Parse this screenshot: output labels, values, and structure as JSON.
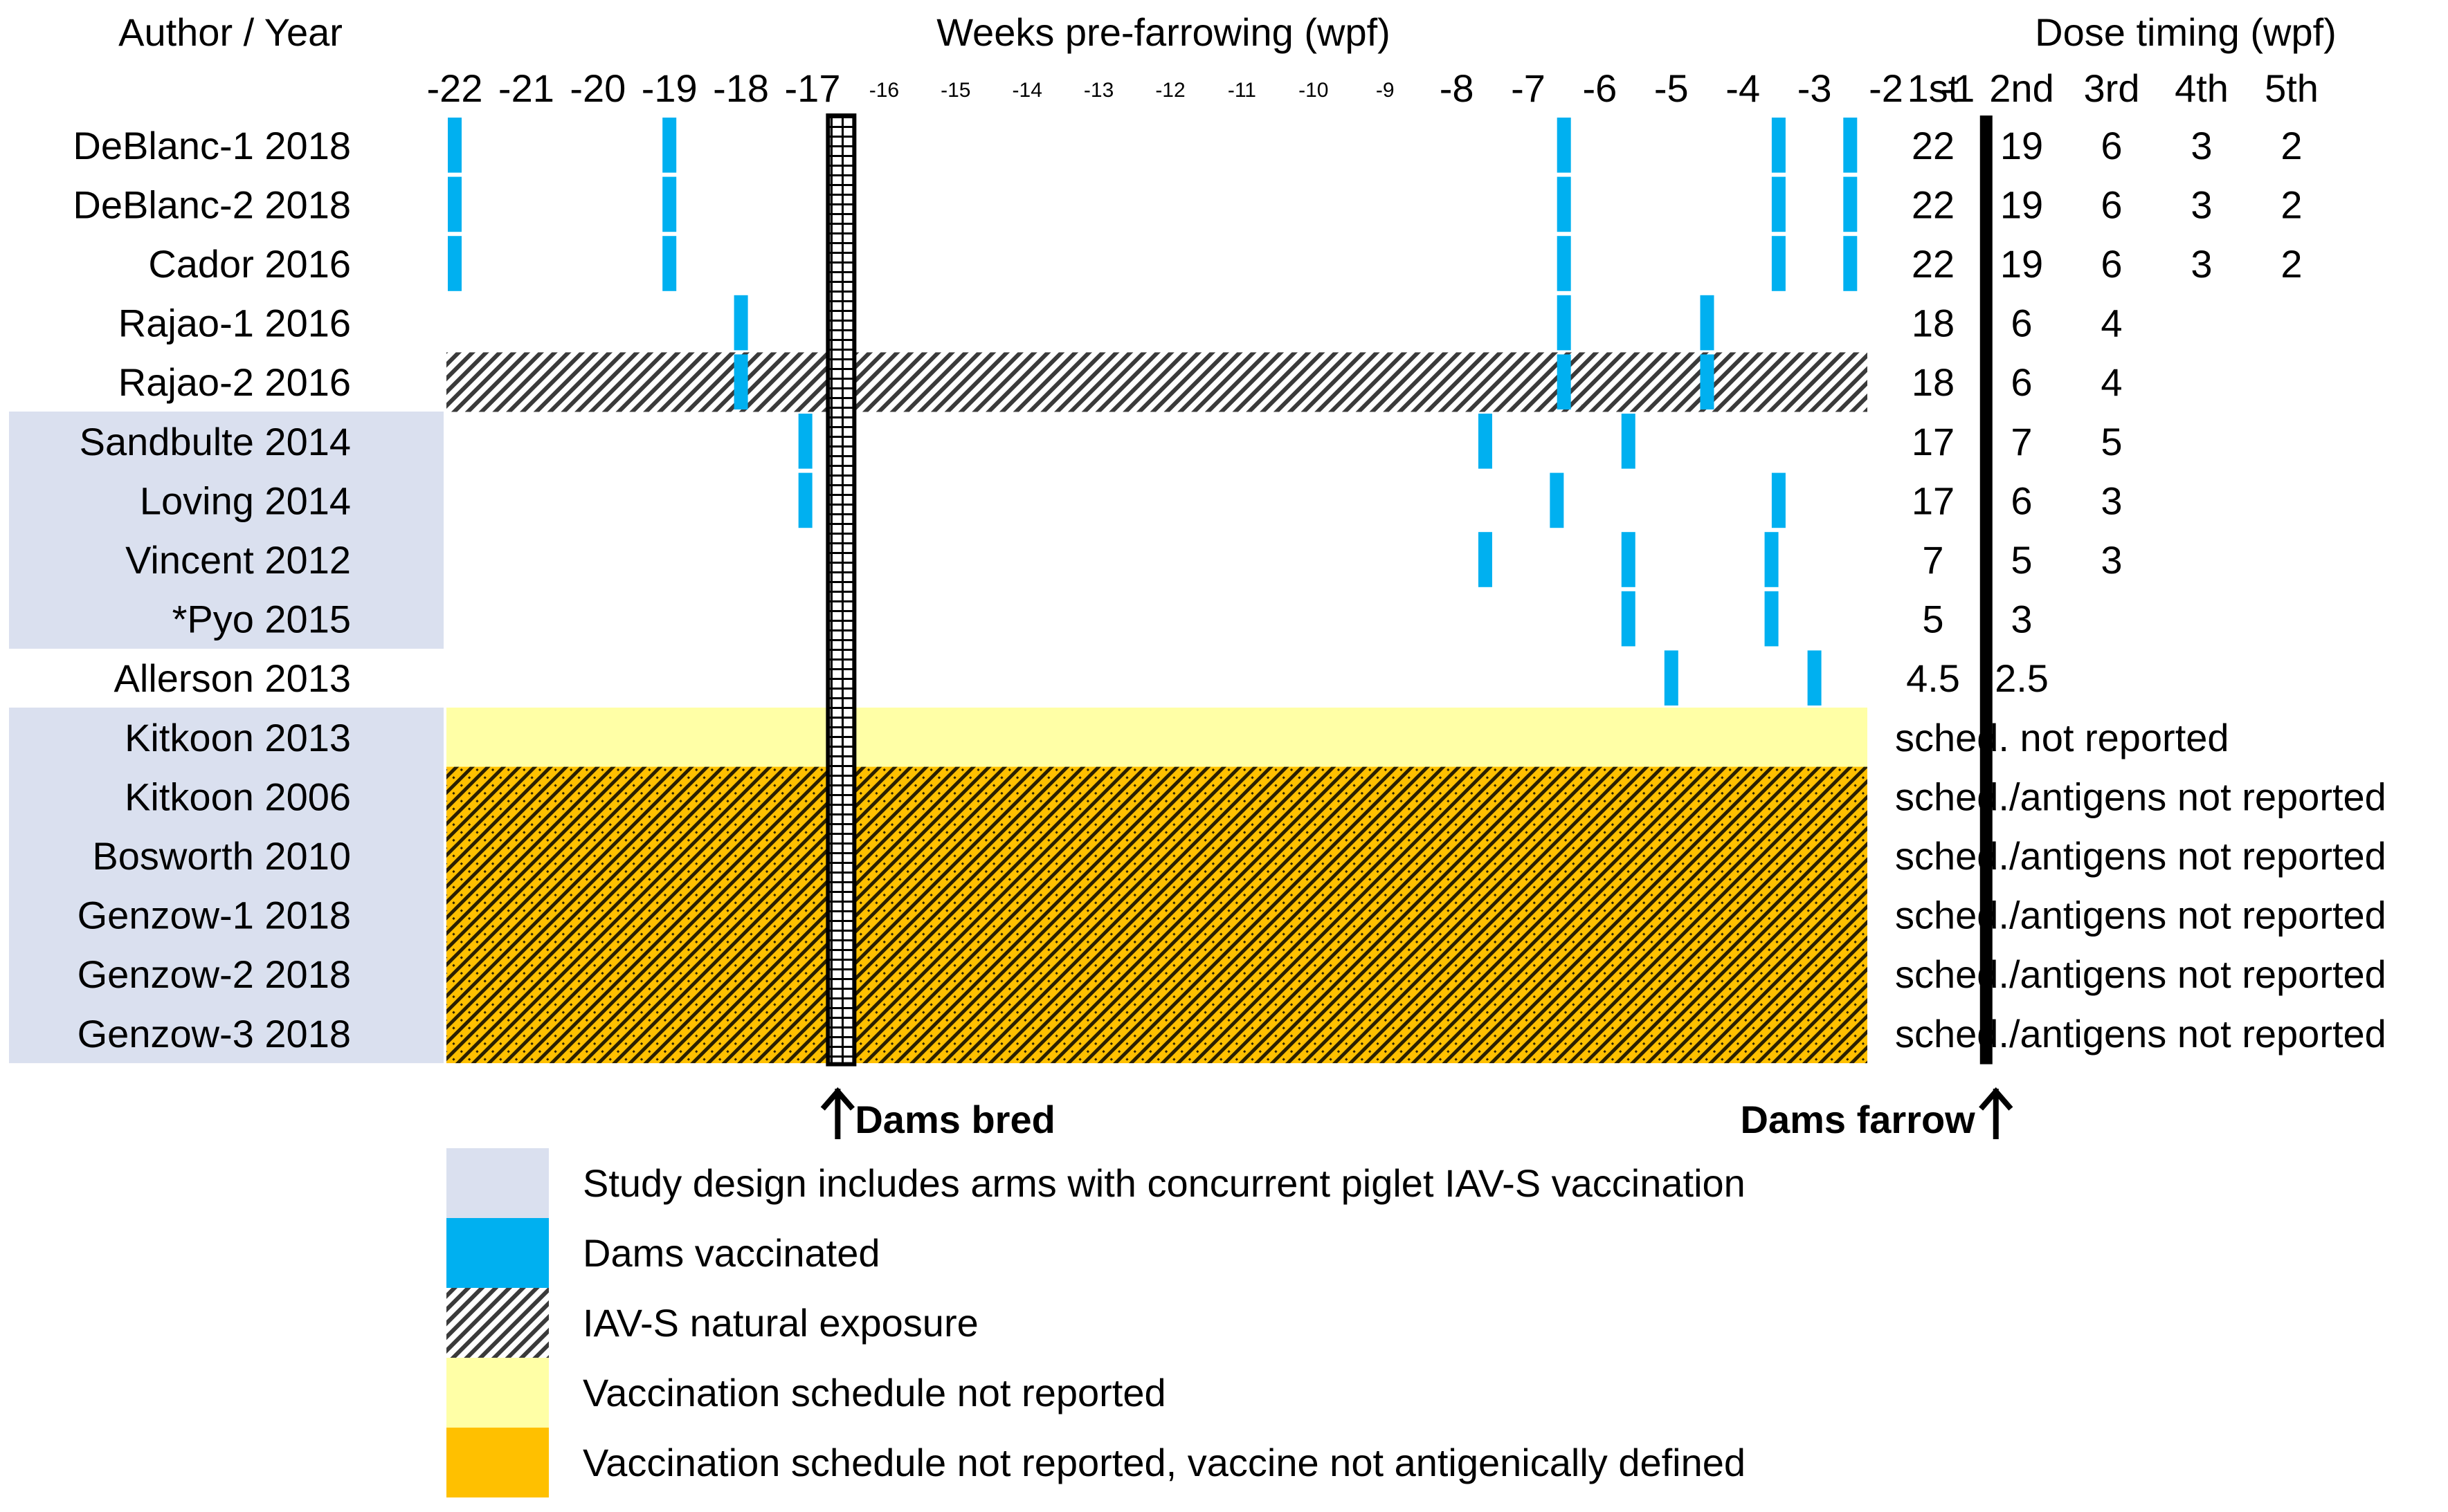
{
  "chart_data": {
    "type": "timeline",
    "title": "Weeks pre-farrowing (wpf)",
    "row_header": "Author / Year",
    "dose_header": "Dose timing (wpf)",
    "dose_columns": [
      "1st",
      "2nd",
      "3rd",
      "4th",
      "5th"
    ],
    "x_ticks": [
      {
        "v": -22,
        "label": "-22",
        "size": "big"
      },
      {
        "v": -21,
        "label": "-21",
        "size": "big"
      },
      {
        "v": -20,
        "label": "-20",
        "size": "big"
      },
      {
        "v": -19,
        "label": "-19",
        "size": "big"
      },
      {
        "v": -18,
        "label": "-18",
        "size": "big"
      },
      {
        "v": -17,
        "label": "-17",
        "size": "big"
      },
      {
        "v": -16,
        "label": "-16",
        "size": "small"
      },
      {
        "v": -15,
        "label": "-15",
        "size": "small"
      },
      {
        "v": -14,
        "label": "-14",
        "size": "small"
      },
      {
        "v": -13,
        "label": "-13",
        "size": "small"
      },
      {
        "v": -12,
        "label": "-12",
        "size": "small"
      },
      {
        "v": -11,
        "label": "-11",
        "size": "small"
      },
      {
        "v": -10,
        "label": "-10",
        "size": "small"
      },
      {
        "v": -9,
        "label": "-9",
        "size": "small"
      },
      {
        "v": -8,
        "label": "-8",
        "size": "big"
      },
      {
        "v": -7,
        "label": "-7",
        "size": "big"
      },
      {
        "v": -6,
        "label": "-6",
        "size": "big"
      },
      {
        "v": -5,
        "label": "-5",
        "size": "big"
      },
      {
        "v": -4,
        "label": "-4",
        "size": "big"
      },
      {
        "v": -3,
        "label": "-3",
        "size": "big"
      },
      {
        "v": -2,
        "label": "-2",
        "size": "big"
      },
      {
        "v": -1,
        "label": "-1",
        "size": "big"
      }
    ],
    "rows": [
      {
        "label": "DeBlanc-1 2018",
        "piglet": false,
        "background": "none",
        "vaccinations": [
          -22,
          -19,
          -6.5,
          -3.5,
          -2.5
        ],
        "doses": [
          "22",
          "19",
          "6",
          "3",
          "2"
        ]
      },
      {
        "label": "DeBlanc-2 2018",
        "piglet": false,
        "background": "none",
        "vaccinations": [
          -22,
          -19,
          -6.5,
          -3.5,
          -2.5
        ],
        "doses": [
          "22",
          "19",
          "6",
          "3",
          "2"
        ]
      },
      {
        "label": "Cador 2016",
        "piglet": false,
        "background": "none",
        "vaccinations": [
          -22,
          -19,
          -6.5,
          -3.5,
          -2.5
        ],
        "doses": [
          "22",
          "19",
          "6",
          "3",
          "2"
        ]
      },
      {
        "label": "Rajao-1 2016",
        "piglet": false,
        "background": "none",
        "vaccinations": [
          -18,
          -6.5,
          -4.5
        ],
        "doses": [
          "18",
          "6",
          "4"
        ]
      },
      {
        "label": "Rajao-2 2016",
        "piglet": false,
        "background": "exposure",
        "vaccinations": [
          -18,
          -6.5,
          -4.5
        ],
        "doses": [
          "18",
          "6",
          "4"
        ]
      },
      {
        "label": "Sandbulte 2014",
        "piglet": true,
        "background": "none",
        "vaccinations": [
          -17.1,
          -7.6,
          -5.6
        ],
        "doses": [
          "17",
          "7",
          "5"
        ]
      },
      {
        "label": "Loving 2014",
        "piglet": true,
        "background": "none",
        "vaccinations": [
          -17.1,
          -6.6,
          -3.5
        ],
        "doses": [
          "17",
          "6",
          "3"
        ]
      },
      {
        "label": "Vincent 2012",
        "piglet": true,
        "background": "none",
        "vaccinations": [
          -7.6,
          -5.6,
          -3.6
        ],
        "doses": [
          "7",
          "5",
          "3"
        ]
      },
      {
        "label": "*Pyo 2015",
        "piglet": true,
        "background": "none",
        "vaccinations": [
          -5.6,
          -3.6
        ],
        "doses": [
          "5",
          "3"
        ]
      },
      {
        "label": "Allerson 2013",
        "piglet": false,
        "background": "none",
        "vaccinations": [
          -5,
          -3
        ],
        "doses": [
          "4.5",
          "2.5"
        ]
      },
      {
        "label": "Kitkoon 2013",
        "piglet": true,
        "background": "not_reported",
        "vaccinations": [],
        "doses": [],
        "note": "sched. not reported"
      },
      {
        "label": "Kitkoon 2006",
        "piglet": true,
        "background": "undefined",
        "vaccinations": [],
        "doses": [],
        "note": "sched./antigens not reported"
      },
      {
        "label": "Bosworth 2010",
        "piglet": true,
        "background": "undefined",
        "vaccinations": [],
        "doses": [],
        "note": "sched./antigens not reported"
      },
      {
        "label": "Genzow-1 2018",
        "piglet": true,
        "background": "undefined",
        "vaccinations": [],
        "doses": [],
        "note": "sched./antigens not reported"
      },
      {
        "label": "Genzow-2 2018",
        "piglet": true,
        "background": "undefined",
        "vaccinations": [],
        "doses": [],
        "note": "sched./antigens not reported"
      },
      {
        "label": "Genzow-3 2018",
        "piglet": true,
        "background": "undefined",
        "vaccinations": [],
        "doses": [],
        "note": "sched./antigens not reported"
      }
    ],
    "markers": [
      {
        "value": -16.6,
        "label": "Dams bred",
        "style": "hatched-line"
      },
      {
        "value": -0.6,
        "label": "Dams farrow",
        "style": "thick-line"
      }
    ],
    "legend": [
      {
        "key": "piglet",
        "label": "Study design includes arms with concurrent piglet IAV-S vaccination"
      },
      {
        "key": "vaccinated",
        "label": "Dams vaccinated"
      },
      {
        "key": "exposure",
        "label": "IAV-S natural exposure"
      },
      {
        "key": "not_reported",
        "label": "Vaccination schedule not reported"
      },
      {
        "key": "undefined",
        "label": "Vaccination schedule not reported, vaccine not antigenically defined"
      }
    ]
  },
  "colors": {
    "piglet": "#dae0ef",
    "vaccinated": "#00b0f0",
    "not_reported": "#ffffa6",
    "undefined": "#ffc000"
  },
  "icons": {
    "up_arrow": "up-arrow-icon"
  }
}
